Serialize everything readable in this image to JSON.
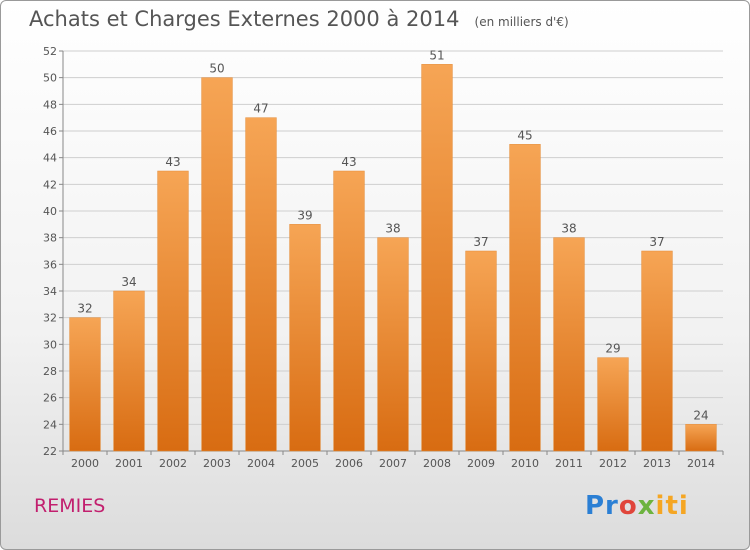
{
  "title": {
    "main": "Achats et Charges Externes 2000 à 2014",
    "unit": "(en milliers d'€)"
  },
  "commune": "REMIES",
  "logo": {
    "text": "Proxiti",
    "parts": [
      "Pr",
      "o",
      "x",
      "iti"
    ],
    "colors": [
      "#2b7fd4",
      "#e0453a",
      "#6db33f",
      "#f5a623"
    ]
  },
  "colors": {
    "bar_top": "#f6a555",
    "bar_bottom": "#d86c12",
    "label": "#555555",
    "grid": "#cfcfcf"
  },
  "chart_data": {
    "type": "bar",
    "title": "Achats et Charges Externes 2000 à 2014",
    "subtitle": "(en milliers d'€)",
    "categories": [
      "2000",
      "2001",
      "2002",
      "2003",
      "2004",
      "2005",
      "2006",
      "2007",
      "2008",
      "2009",
      "2010",
      "2011",
      "2012",
      "2013",
      "2014"
    ],
    "values": [
      32,
      34,
      43,
      50,
      47,
      39,
      43,
      38,
      51,
      37,
      45,
      38,
      29,
      37,
      24
    ],
    "ylim": [
      22,
      52
    ],
    "yticks": [
      22,
      24,
      26,
      28,
      30,
      32,
      34,
      36,
      38,
      40,
      42,
      44,
      46,
      48,
      50,
      52
    ],
    "xlabel": "",
    "ylabel": "",
    "grid": true,
    "data_labels": true
  }
}
